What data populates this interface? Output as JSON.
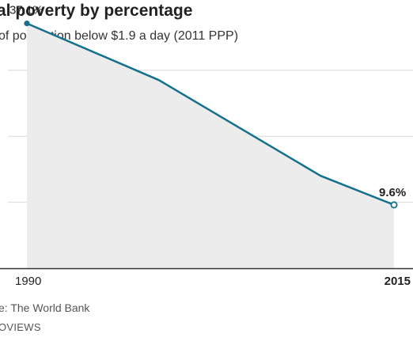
{
  "chart_data": {
    "type": "area",
    "title": "al poverty by percentage",
    "subtitle": "of population below $1.9 a day (2011 PPP)",
    "x_ticks": [
      "1990",
      "2015"
    ],
    "x": [
      1990,
      1999,
      2010,
      2015
    ],
    "series": [
      {
        "values": [
          37.1,
          28.5,
          14.0,
          9.6
        ]
      }
    ],
    "data_labels": [
      "37.1%",
      "9.6%"
    ],
    "xlim": [
      1990,
      2015
    ],
    "ylim": [
      0,
      40
    ],
    "grid": true,
    "legend": "none",
    "colors": {
      "line": "#15708d",
      "area": "#ececec",
      "grid": "#d9d9d9",
      "baseline": "#333333"
    }
  },
  "footer": {
    "source": "e: The World Bank",
    "credit": "OVIEWS"
  }
}
